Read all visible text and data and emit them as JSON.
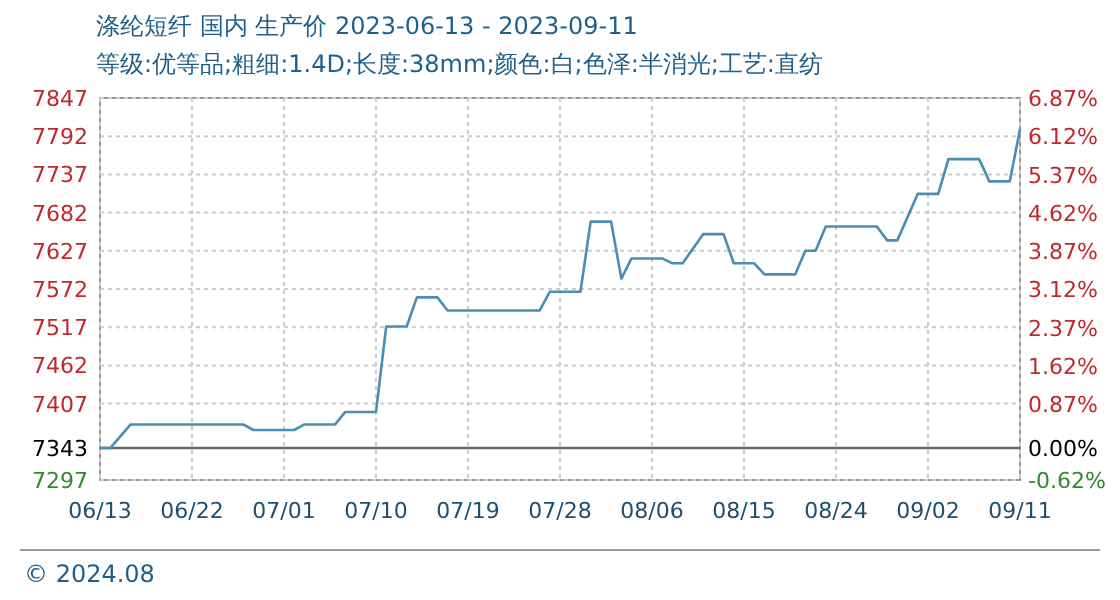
{
  "chart_data": {
    "type": "line",
    "title": "涤纶短纤 国内 生产价 2023-06-13 - 2023-09-11",
    "subtitle": "等级:优等品;粗细:1.4D;长度:38mm;颜色:白;色泽:半消光;工艺:直纺",
    "x": [
      "2023-06-13",
      "2023-06-14",
      "2023-06-16",
      "2023-06-27",
      "2023-06-28",
      "2023-07-02",
      "2023-07-03",
      "2023-07-06",
      "2023-07-07",
      "2023-07-10",
      "2023-07-11",
      "2023-07-13",
      "2023-07-14",
      "2023-07-16",
      "2023-07-17",
      "2023-07-26",
      "2023-07-27",
      "2023-07-30",
      "2023-07-31",
      "2023-08-02",
      "2023-08-03",
      "2023-08-04",
      "2023-08-07",
      "2023-08-08",
      "2023-08-09",
      "2023-08-11",
      "2023-08-13",
      "2023-08-14",
      "2023-08-16",
      "2023-08-17",
      "2023-08-20",
      "2023-08-21",
      "2023-08-22",
      "2023-08-23",
      "2023-08-28",
      "2023-08-29",
      "2023-08-30",
      "2023-09-01",
      "2023-09-03",
      "2023-09-04",
      "2023-09-07",
      "2023-09-08",
      "2023-09-10",
      "2023-09-11"
    ],
    "series": [
      {
        "color": "#4a8db5",
        "values": [
          7343,
          7343,
          7377,
          7377,
          7369,
          7369,
          7377,
          7377,
          7395,
          7395,
          7518,
          7518,
          7560,
          7560,
          7541,
          7541,
          7568,
          7568,
          7669,
          7669,
          7587,
          7616,
          7616,
          7609,
          7609,
          7651,
          7651,
          7609,
          7609,
          7593,
          7593,
          7627,
          7627,
          7662,
          7662,
          7642,
          7642,
          7709,
          7709,
          7759,
          7759,
          7727,
          7727,
          7802
        ]
      }
    ],
    "xlim": [
      "2023-06-13",
      "2023-09-11"
    ],
    "xticks": [
      {
        "value": "2023-06-13",
        "label": "06/13"
      },
      {
        "value": "2023-06-22",
        "label": "06/22"
      },
      {
        "value": "2023-07-01",
        "label": "07/01"
      },
      {
        "value": "2023-07-10",
        "label": "07/10"
      },
      {
        "value": "2023-07-19",
        "label": "07/19"
      },
      {
        "value": "2023-07-28",
        "label": "07/28"
      },
      {
        "value": "2023-08-06",
        "label": "08/06"
      },
      {
        "value": "2023-08-15",
        "label": "08/15"
      },
      {
        "value": "2023-08-24",
        "label": "08/24"
      },
      {
        "value": "2023-09-02",
        "label": "09/02"
      },
      {
        "value": "2023-09-11",
        "label": "09/11"
      }
    ],
    "ylim": [
      7297,
      7847
    ],
    "yticks": [
      7297,
      7343,
      7407,
      7462,
      7517,
      7572,
      7627,
      7682,
      7737,
      7792,
      7847
    ],
    "y2lim": [
      -0.62,
      6.87
    ],
    "y2ticks": [
      {
        "value": -0.62,
        "label": "-0.62%"
      },
      {
        "value": 0,
        "label": "0.00%"
      },
      {
        "value": 0.87,
        "label": "0.87%"
      },
      {
        "value": 1.62,
        "label": "1.62%"
      },
      {
        "value": 2.37,
        "label": "2.37%"
      },
      {
        "value": 3.12,
        "label": "3.12%"
      },
      {
        "value": 3.87,
        "label": "3.87%"
      },
      {
        "value": 4.62,
        "label": "4.62%"
      },
      {
        "value": 5.37,
        "label": "5.37%"
      },
      {
        "value": 6.12,
        "label": "6.12%"
      },
      {
        "value": 6.87,
        "label": "6.87%"
      }
    ],
    "ref_lines": [
      {
        "axis": "y",
        "value": 7343,
        "color": "#666666"
      }
    ],
    "grid": true,
    "marker": "none",
    "line_style": "solid",
    "annotations": [
      "© 2024.08"
    ]
  }
}
